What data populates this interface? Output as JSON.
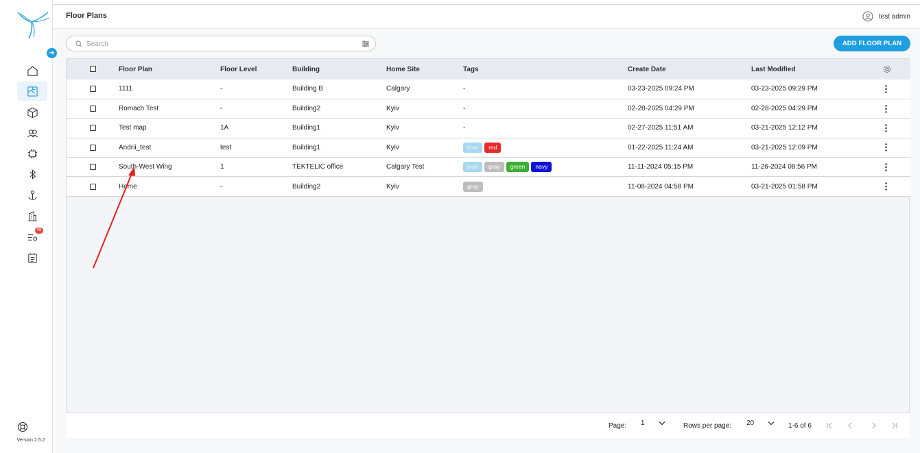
{
  "app": {
    "page_title": "Floor Plans",
    "version": "Version 2.5.2"
  },
  "user": {
    "name": "test admin"
  },
  "sidebar": {
    "items": [
      {
        "icon": "home-icon"
      },
      {
        "icon": "floor-plan-icon",
        "active": true
      },
      {
        "icon": "cube-icon"
      },
      {
        "icon": "users-icon"
      },
      {
        "icon": "chip-icon"
      },
      {
        "icon": "bluetooth-icon"
      },
      {
        "icon": "anchor-icon"
      },
      {
        "icon": "building-icon"
      },
      {
        "icon": "alerts-icon",
        "badge": "48"
      },
      {
        "icon": "reports-icon"
      }
    ]
  },
  "search": {
    "placeholder": "Search",
    "value": ""
  },
  "toolbar": {
    "add_label": "ADD FLOOR PLAN"
  },
  "table": {
    "headers": {
      "floor_plan": "Floor Plan",
      "floor_level": "Floor Level",
      "building": "Building",
      "home_site": "Home Site",
      "tags": "Tags",
      "create_date": "Create Date",
      "last_modified": "Last Modified"
    },
    "rows": [
      {
        "floor_plan": "1111",
        "floor_level": "-",
        "building": "Building B",
        "home_site": "Calgary",
        "tags_text": "-",
        "tags": [],
        "create_date": "03-23-2025 09:24 PM",
        "last_modified": "03-23-2025 09:29 PM"
      },
      {
        "floor_plan": "Romach Test",
        "floor_level": "-",
        "building": "Building2",
        "home_site": "Kyiv",
        "tags_text": "-",
        "tags": [],
        "create_date": "02-28-2025 04:29 PM",
        "last_modified": "02-28-2025 04:29 PM"
      },
      {
        "floor_plan": "Test map",
        "floor_level": "1A",
        "building": "Building1",
        "home_site": "Kyiv",
        "tags_text": "-",
        "tags": [],
        "create_date": "02-27-2025 11:51 AM",
        "last_modified": "03-21-2025 12:12 PM"
      },
      {
        "floor_plan": "Andrii_test",
        "floor_level": "test",
        "building": "Building1",
        "home_site": "Kyiv",
        "tags_text": "",
        "tags": [
          {
            "label": "blue",
            "color": "#a8d8ee"
          },
          {
            "label": "red",
            "color": "#e82a2a"
          }
        ],
        "create_date": "01-22-2025 11:24 AM",
        "last_modified": "03-21-2025 12:09 PM"
      },
      {
        "floor_plan": "South-West Wing",
        "floor_level": "1",
        "building": "TEKTELIC office",
        "home_site": "Calgary Test",
        "tags_text": "",
        "tags": [
          {
            "label": "blue",
            "color": "#a8d8ee"
          },
          {
            "label": "gray",
            "color": "#bdbdbd"
          },
          {
            "label": "green",
            "color": "#3bb033"
          },
          {
            "label": "navy",
            "color": "#1010d8"
          }
        ],
        "create_date": "11-11-2024 05:15 PM",
        "last_modified": "11-26-2024 08:56 PM"
      },
      {
        "floor_plan": "Home",
        "floor_level": "-",
        "building": "Building2",
        "home_site": "Kyiv",
        "tags_text": "",
        "tags": [
          {
            "label": "gray",
            "color": "#bdbdbd"
          }
        ],
        "create_date": "11-08-2024 04:58 PM",
        "last_modified": "03-21-2025 01:58 PM"
      }
    ]
  },
  "pagination": {
    "page_label": "Page:",
    "page_value": "1",
    "rows_label": "Rows per page:",
    "rows_value": "20",
    "range": "1-6 of 6"
  },
  "colors": {
    "accent": "#1f9fe0",
    "annotation_arrow": "#e02020"
  }
}
